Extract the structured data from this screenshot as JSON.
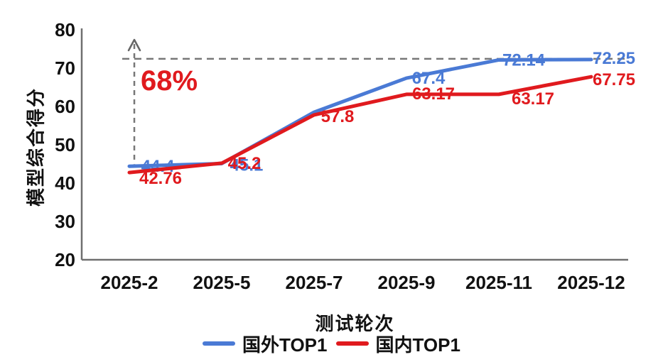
{
  "chart_data": {
    "type": "line",
    "title": "",
    "xlabel": "测试轮次",
    "ylabel": "模型综合得分",
    "x_categories": [
      "2025-2",
      "2025-5",
      "2025-7",
      "2025-9",
      "2025-11",
      "2025-12"
    ],
    "y_ticks": [
      "80",
      "70",
      "60",
      "50",
      "40",
      "30",
      "20"
    ],
    "ylim": [
      20,
      80
    ],
    "grid": false,
    "legend_position": "bottom",
    "series": [
      {
        "name": "国外TOP1",
        "color": "#4a7ad5",
        "values": [
          44.4,
          45.1,
          58.5,
          67.4,
          72.14,
          72.25
        ],
        "labels": [
          "44.4",
          "45.1",
          "",
          "67.4",
          "72.14",
          "72.25"
        ]
      },
      {
        "name": "国内TOP1",
        "color": "#e01a1e",
        "values": [
          42.76,
          45.2,
          57.8,
          63.17,
          63.17,
          67.75
        ],
        "labels": [
          "42.76",
          "45.2",
          "57.8",
          "63.17",
          "63.17",
          "67.75"
        ]
      }
    ],
    "annotations": {
      "growth_label": "68%",
      "growth_label_color": "#e01a1e",
      "reference_value": 72.25,
      "dash_color": "#777777",
      "arrow_color": "#666666"
    }
  }
}
